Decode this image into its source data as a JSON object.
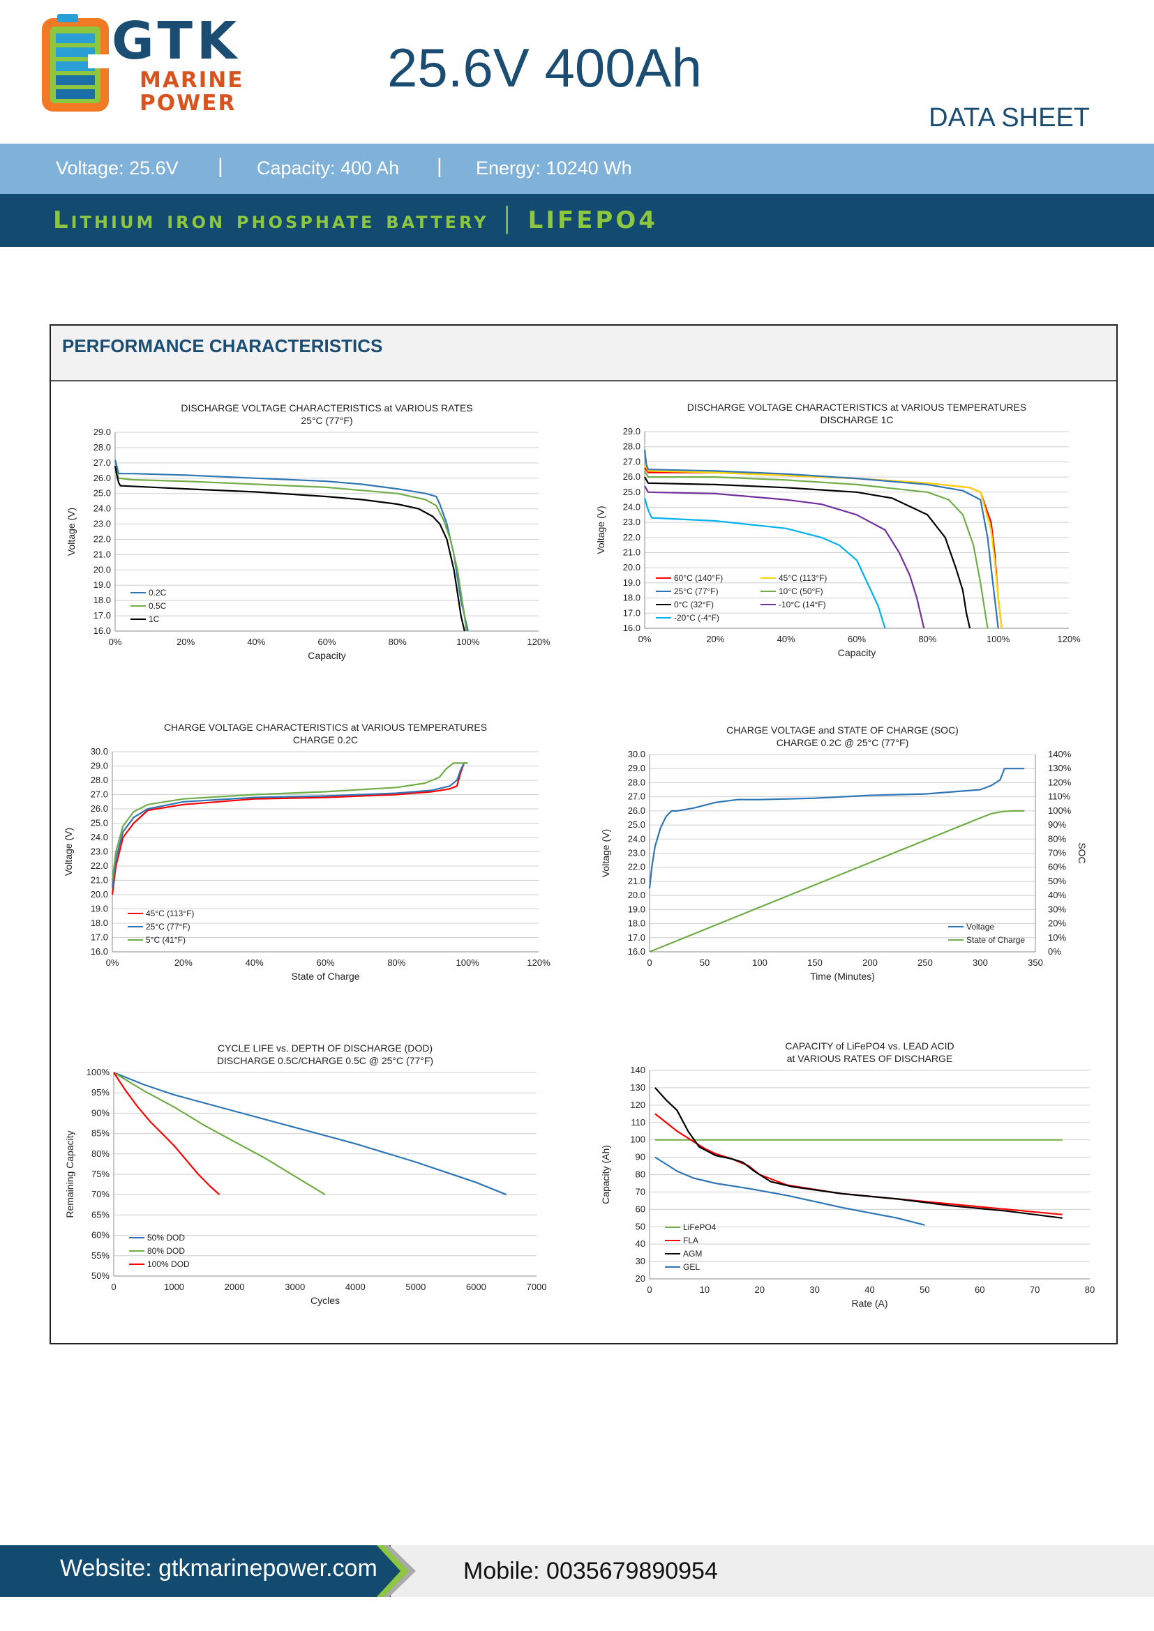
{
  "brand": {
    "name": "GTK",
    "line1": "MARINE",
    "line2": "POWER"
  },
  "title": "25.6V 400Ah",
  "doc_type": "DATA SHEET",
  "specs": {
    "voltage": "Voltage: 25.6V",
    "capacity": "Capacity: 400 Ah",
    "energy": "Energy: 10240 Wh",
    "separator": "|"
  },
  "chemistry": "Lithium iron phosphate battery │ LIFEPO4",
  "section_title": "PERFORMANCE CHARACTERISTICS",
  "colors": {
    "navy": "#124a70",
    "light_blue": "#7fb1d9",
    "green": "#8dc63f",
    "orange": "#d9531e"
  },
  "footer": {
    "website": "Website: gtkmarinepower.com",
    "mobile": "Mobile: 0035679890954"
  },
  "chart_data": [
    {
      "type": "line",
      "title": "DISCHARGE VOLTAGE CHARACTERISTICS at VARIOUS RATES",
      "subtitle": "25°C (77°F)",
      "xlabel": "Capacity",
      "ylabel": "Voltage (V)",
      "xlim": [
        0,
        120
      ],
      "ylim": [
        16,
        29
      ],
      "xticks": [
        0,
        20,
        40,
        60,
        80,
        100,
        120
      ],
      "xtick_suffix": "%",
      "yticks": [
        16,
        17,
        18,
        19,
        20,
        21,
        22,
        23,
        24,
        25,
        26,
        27,
        28,
        29
      ],
      "ytick_decimals": 1,
      "legend": "bottom-left",
      "series": [
        {
          "name": "0.2C",
          "color": "#2e75b6",
          "x": [
            0,
            1,
            5,
            20,
            40,
            60,
            70,
            80,
            88,
            91,
            92,
            94,
            96,
            97,
            98,
            99,
            100
          ],
          "y": [
            27.2,
            26.3,
            26.3,
            26.2,
            26.0,
            25.8,
            25.6,
            25.3,
            25.0,
            24.8,
            24.3,
            23.0,
            21.0,
            19.5,
            18.0,
            17.0,
            16.0
          ]
        },
        {
          "name": "0.5C",
          "color": "#70ad47",
          "x": [
            0,
            1,
            5,
            20,
            40,
            60,
            70,
            80,
            88,
            91,
            93,
            95,
            97,
            98,
            99,
            99.5
          ],
          "y": [
            26.8,
            26.0,
            25.9,
            25.8,
            25.6,
            25.4,
            25.2,
            25.0,
            24.6,
            24.2,
            23.3,
            22.0,
            20.0,
            18.5,
            17.0,
            16.0
          ]
        },
        {
          "name": "1C",
          "color": "#000000",
          "x": [
            0,
            0.5,
            1,
            1.5,
            2,
            20,
            40,
            60,
            70,
            80,
            86,
            90,
            92,
            94,
            96,
            97,
            98,
            99
          ],
          "y": [
            26.8,
            26.2,
            25.7,
            25.5,
            25.5,
            25.3,
            25.1,
            24.8,
            24.6,
            24.3,
            24.0,
            23.5,
            23.0,
            22.0,
            20.0,
            18.5,
            17.0,
            16.0
          ]
        }
      ]
    },
    {
      "type": "line",
      "title": "DISCHARGE VOLTAGE CHARACTERISTICS at VARIOUS TEMPERATURES",
      "subtitle": "DISCHARGE 1C",
      "xlabel": "Capacity",
      "ylabel": "Voltage (V)",
      "xlim": [
        0,
        120
      ],
      "ylim": [
        16,
        29
      ],
      "xticks": [
        0,
        20,
        40,
        60,
        80,
        100,
        120
      ],
      "xtick_suffix": "%",
      "yticks": [
        16,
        17,
        18,
        19,
        20,
        21,
        22,
        23,
        24,
        25,
        26,
        27,
        28,
        29
      ],
      "ytick_decimals": 1,
      "legend": "bottom-left-2col",
      "series": [
        {
          "name": "60°C  (140°F)",
          "color": "#ff0000",
          "x": [
            0,
            1,
            20,
            40,
            60,
            80,
            92,
            95,
            98,
            99,
            100,
            101
          ],
          "y": [
            26.6,
            26.3,
            26.3,
            26.1,
            25.9,
            25.6,
            25.3,
            25.0,
            23.0,
            21.0,
            18.0,
            16.0
          ]
        },
        {
          "name": "45°C  (113°F)",
          "color": "#ffd700",
          "x": [
            0,
            1,
            20,
            40,
            60,
            80,
            92,
            95,
            98,
            99,
            100,
            101
          ],
          "y": [
            26.8,
            26.4,
            26.3,
            26.1,
            25.9,
            25.6,
            25.3,
            25.0,
            22.5,
            20.5,
            18.0,
            16.0
          ]
        },
        {
          "name": "25°C  (77°F)",
          "color": "#2e75b6",
          "x": [
            0,
            0.5,
            1,
            20,
            40,
            60,
            80,
            90,
            95,
            97,
            98,
            99,
            100
          ],
          "y": [
            27.8,
            26.8,
            26.5,
            26.4,
            26.2,
            25.9,
            25.5,
            25.1,
            24.5,
            22.0,
            20.0,
            18.0,
            16.0
          ]
        },
        {
          "name": "10°C  (50°F)",
          "color": "#70ad47",
          "x": [
            0,
            1,
            20,
            40,
            60,
            80,
            86,
            90,
            93,
            95,
            96,
            97
          ],
          "y": [
            26.4,
            26.0,
            26.0,
            25.8,
            25.5,
            25.0,
            24.5,
            23.5,
            21.5,
            19.0,
            17.5,
            16.0
          ]
        },
        {
          "name": "0°C  (32°F)",
          "color": "#000000",
          "x": [
            0,
            1,
            20,
            40,
            60,
            70,
            80,
            85,
            88,
            90,
            91,
            92
          ],
          "y": [
            26.0,
            25.6,
            25.5,
            25.3,
            25.0,
            24.6,
            23.5,
            22.0,
            20.0,
            18.5,
            17.0,
            16.0
          ]
        },
        {
          "name": "-10°C  (14°F)",
          "color": "#7030a0",
          "x": [
            0,
            1,
            20,
            40,
            50,
            60,
            68,
            72,
            75,
            77,
            79
          ],
          "y": [
            25.4,
            25.0,
            24.9,
            24.5,
            24.2,
            23.5,
            22.5,
            21.0,
            19.5,
            18.0,
            16.0
          ]
        },
        {
          "name": "-20°C  (-4°F)",
          "color": "#00b0f0",
          "x": [
            0,
            1,
            2,
            20,
            40,
            50,
            55,
            60,
            63,
            66,
            68
          ],
          "y": [
            24.6,
            23.8,
            23.3,
            23.1,
            22.6,
            22.0,
            21.5,
            20.5,
            19.0,
            17.5,
            16.0
          ]
        }
      ]
    },
    {
      "type": "line",
      "title": "CHARGE VOLTAGE CHARACTERISTICS at VARIOUS TEMPERATURES",
      "subtitle": "CHARGE 0.2C",
      "xlabel": "State of Charge",
      "ylabel": "Voltage (V)",
      "xlim": [
        0,
        120
      ],
      "ylim": [
        16,
        30
      ],
      "xticks": [
        0,
        20,
        40,
        60,
        80,
        100,
        120
      ],
      "xtick_suffix": "%",
      "yticks": [
        16,
        17,
        18,
        19,
        20,
        21,
        22,
        23,
        24,
        25,
        26,
        27,
        28,
        29,
        30
      ],
      "ytick_decimals": 1,
      "legend": "bottom-left",
      "series": [
        {
          "name": "45°C  (113°F)",
          "color": "#ff0000",
          "x": [
            0,
            1,
            3,
            6,
            10,
            20,
            40,
            60,
            80,
            90,
            95,
            97,
            98,
            99
          ],
          "y": [
            20.0,
            22.0,
            24.0,
            25.0,
            25.9,
            26.3,
            26.7,
            26.8,
            27.0,
            27.2,
            27.4,
            27.6,
            28.5,
            29.2
          ]
        },
        {
          "name": "25°C  (77°F)",
          "color": "#2e75b6",
          "x": [
            0,
            1,
            3,
            6,
            10,
            20,
            40,
            60,
            80,
            90,
            95,
            97,
            98,
            99,
            100
          ],
          "y": [
            20.5,
            22.5,
            24.4,
            25.4,
            26.0,
            26.5,
            26.8,
            26.9,
            27.1,
            27.3,
            27.6,
            28.0,
            28.7,
            29.2,
            29.2
          ]
        },
        {
          "name": "5°C  (41°F)",
          "color": "#70ad47",
          "x": [
            0,
            1,
            3,
            6,
            10,
            20,
            40,
            60,
            80,
            88,
            92,
            94,
            96,
            98,
            100
          ],
          "y": [
            21.0,
            23.0,
            24.8,
            25.8,
            26.3,
            26.7,
            27.0,
            27.2,
            27.5,
            27.8,
            28.2,
            28.8,
            29.2,
            29.2,
            29.2
          ]
        }
      ]
    },
    {
      "type": "line",
      "title": "CHARGE VOLTAGE and STATE OF CHARGE (SOC)",
      "subtitle": "CHARGE 0.2C @ 25°C (77°F)",
      "xlabel": "Time (Minutes)",
      "ylabel": "Voltage (V)",
      "y2label": "SOC",
      "xlim": [
        0,
        350
      ],
      "ylim": [
        16,
        30
      ],
      "y2lim": [
        0,
        140
      ],
      "xticks": [
        0,
        50,
        100,
        150,
        200,
        250,
        300,
        350
      ],
      "yticks": [
        16,
        17,
        18,
        19,
        20,
        21,
        22,
        23,
        24,
        25,
        26,
        27,
        28,
        29,
        30
      ],
      "ytick_decimals": 1,
      "y2ticks": [
        0,
        10,
        20,
        30,
        40,
        50,
        60,
        70,
        80,
        90,
        100,
        110,
        120,
        130,
        140
      ],
      "y2tick_suffix": "%",
      "legend": "bottom-right",
      "series": [
        {
          "name": "Voltage",
          "color": "#2e75b6",
          "axis": "y",
          "x": [
            0,
            2,
            5,
            10,
            15,
            20,
            25,
            40,
            60,
            80,
            100,
            150,
            200,
            250,
            300,
            310,
            318,
            322,
            325,
            340
          ],
          "y": [
            20.5,
            22.0,
            23.5,
            24.8,
            25.6,
            26.0,
            26.0,
            26.2,
            26.6,
            26.8,
            26.8,
            26.9,
            27.1,
            27.2,
            27.5,
            27.8,
            28.2,
            29.0,
            29.0,
            29.0
          ]
        },
        {
          "name": "State of Charge",
          "color": "#70ad47",
          "axis": "y2",
          "x": [
            0,
            300,
            310,
            320,
            330,
            340
          ],
          "y": [
            0,
            95,
            98,
            99.5,
            100,
            100
          ]
        }
      ]
    },
    {
      "type": "line",
      "title": "CYCLE LIFE vs. DEPTH OF DISCHARGE (DOD)",
      "subtitle": "DISCHARGE 0.5C/CHARGE 0.5C @ 25°C (77°F)",
      "xlabel": "Cycles",
      "ylabel": "Remaining Capacity",
      "xlim": [
        0,
        7000
      ],
      "ylim": [
        50,
        100
      ],
      "xticks": [
        0,
        1000,
        2000,
        3000,
        4000,
        5000,
        6000,
        7000
      ],
      "yticks": [
        50,
        55,
        60,
        65,
        70,
        75,
        80,
        85,
        90,
        95,
        100
      ],
      "ytick_suffix": "%",
      "legend": "bottom-left",
      "series": [
        {
          "name": "50% DOD",
          "color": "#2e75b6",
          "x": [
            0,
            500,
            1000,
            2000,
            3000,
            4000,
            5000,
            6000,
            6500
          ],
          "y": [
            100,
            97,
            94.5,
            90.5,
            86.5,
            82.5,
            78,
            73,
            70
          ]
        },
        {
          "name": "80% DOD",
          "color": "#70ad47",
          "x": [
            0,
            500,
            1000,
            1500,
            2000,
            2500,
            3000,
            3500
          ],
          "y": [
            100,
            95.5,
            91.5,
            87,
            83,
            79,
            74.5,
            70
          ]
        },
        {
          "name": "100% DOD",
          "color": "#ff0000",
          "x": [
            0,
            200,
            400,
            600,
            800,
            1000,
            1200,
            1400,
            1600,
            1750
          ],
          "y": [
            100,
            95.5,
            91.5,
            88,
            85,
            82,
            78.5,
            75,
            72,
            70
          ]
        }
      ]
    },
    {
      "type": "line",
      "title": "CAPACITY of LiFePO4 vs. LEAD ACID",
      "subtitle": "at VARIOUS RATES OF DISCHARGE",
      "xlabel": "Rate (A)",
      "ylabel": "Capacity (Ah)",
      "xlim": [
        0,
        80
      ],
      "ylim": [
        20,
        140
      ],
      "xticks": [
        0,
        10,
        20,
        30,
        40,
        50,
        60,
        70,
        80
      ],
      "yticks": [
        20,
        30,
        40,
        50,
        60,
        70,
        80,
        90,
        100,
        110,
        120,
        130,
        140
      ],
      "legend": "bottom-left",
      "series": [
        {
          "name": "LiFePO4",
          "color": "#70ad47",
          "x": [
            1,
            75
          ],
          "y": [
            100,
            100
          ]
        },
        {
          "name": "FLA",
          "color": "#ff0000",
          "x": [
            1,
            3,
            5,
            8,
            10,
            12,
            15,
            18,
            20,
            25,
            35,
            45,
            55,
            65,
            75
          ],
          "y": [
            115,
            110,
            105,
            99,
            95,
            92,
            89,
            85,
            80,
            74,
            69,
            66,
            63,
            60,
            57
          ]
        },
        {
          "name": "AGM",
          "color": "#000000",
          "x": [
            1,
            3,
            5,
            7,
            9,
            12,
            15,
            17,
            19,
            22,
            26,
            35,
            45,
            55,
            65,
            75
          ],
          "y": [
            130,
            123,
            117,
            105,
            96,
            91,
            89,
            87,
            82,
            76,
            73,
            69,
            66,
            62,
            59,
            55
          ]
        },
        {
          "name": "GEL",
          "color": "#2e75b6",
          "x": [
            1,
            3,
            5,
            8,
            12,
            18,
            25,
            35,
            45,
            50
          ],
          "y": [
            90,
            86,
            82,
            78,
            75,
            72,
            68,
            61,
            55,
            51
          ]
        }
      ]
    }
  ]
}
